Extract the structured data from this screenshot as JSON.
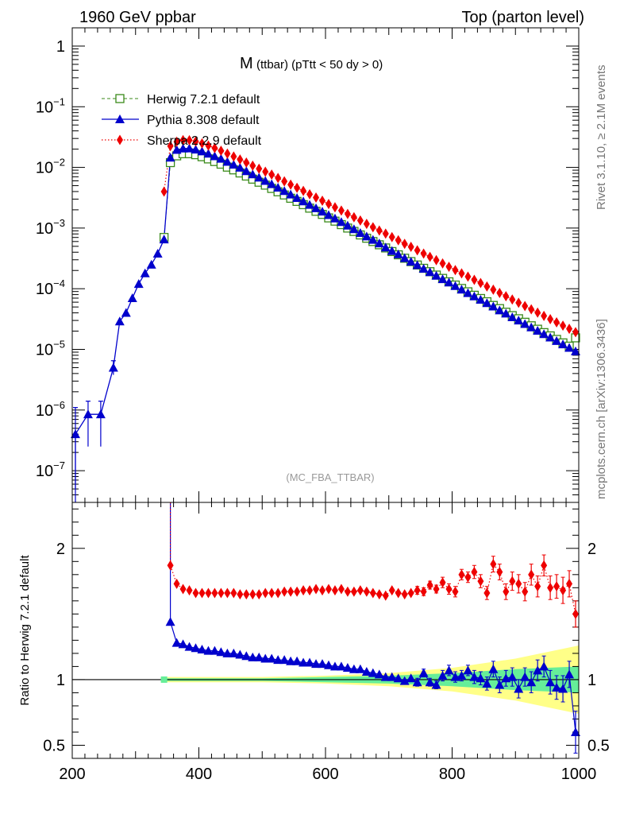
{
  "header": {
    "left": "1960 GeV ppbar",
    "right": "Top (parton level)"
  },
  "side_labels": {
    "rivet": "Rivet 3.1.10, ≥ 2.1M events",
    "mcplots": "mcplots.cern.ch [arXiv:1306.3436]"
  },
  "colors": {
    "herwig": "#3a8a1a",
    "pythia": "#0000cc",
    "sherpa": "#ee0000",
    "band_inner": "#66ee99",
    "band_outer": "#ffff88"
  },
  "chart_data": [
    {
      "type": "line",
      "title": "M (ttbar) (pTtt < 50 dy > 0)",
      "title_main": "M",
      "title_rest": "(ttbar) (pTtt < 50 dy > 0)",
      "watermark": "(MC_FBA_TTBAR)",
      "y_scale": "log",
      "xlim": [
        200,
        1000
      ],
      "ylim": [
        3e-08,
        2
      ],
      "y_ticks": [
        {
          "value": 1,
          "base": "1",
          "exp": ""
        },
        {
          "value": 0.1,
          "base": "10",
          "exp": "−1"
        },
        {
          "value": 0.01,
          "base": "10",
          "exp": "−2"
        },
        {
          "value": 0.001,
          "base": "10",
          "exp": "−3"
        },
        {
          "value": 0.0001,
          "base": "10",
          "exp": "−4"
        },
        {
          "value": 1e-05,
          "base": "10",
          "exp": "−5"
        },
        {
          "value": 1e-06,
          "base": "10",
          "exp": "−6"
        },
        {
          "value": 1e-07,
          "base": "10",
          "exp": "−7"
        }
      ],
      "legend_position": "top-left",
      "series": [
        {
          "name": "Herwig 7.2.1 default",
          "marker": "open-square",
          "style": "dashed",
          "x": [
            345,
            355,
            365,
            375,
            385,
            395,
            405,
            415,
            425,
            435,
            445,
            455,
            465,
            475,
            485,
            495,
            505,
            515,
            525,
            535,
            545,
            555,
            565,
            575,
            585,
            595,
            605,
            615,
            625,
            635,
            645,
            655,
            665,
            675,
            685,
            695,
            705,
            715,
            725,
            735,
            745,
            755,
            765,
            775,
            785,
            795,
            805,
            815,
            825,
            835,
            845,
            855,
            865,
            875,
            885,
            895,
            905,
            915,
            925,
            935,
            945,
            955,
            965,
            975,
            985,
            995
          ],
          "y": [
            0.0007,
            0.012,
            0.0155,
            0.0168,
            0.0168,
            0.0162,
            0.015,
            0.0138,
            0.0125,
            0.0113,
            0.0101,
            0.0091,
            0.0081,
            0.0072,
            0.0064,
            0.0057,
            0.0051,
            0.0045,
            0.00396,
            0.00351,
            0.0031,
            0.00275,
            0.00243,
            0.00213,
            0.00189,
            0.00168,
            0.00147,
            0.0013,
            0.00114,
            0.001,
            0.00088,
            0.00077,
            0.00068,
            0.0006,
            0.00053,
            0.00047,
            0.00041,
            0.000362,
            0.000318,
            0.00028,
            0.000246,
            0.000217,
            0.000191,
            0.000168,
            0.000148,
            0.00013,
            0.000115,
            0.000101,
            8.9e-05,
            7.8e-05,
            6.9e-05,
            6.1e-05,
            5.3e-05,
            4.7e-05,
            4.1e-05,
            3.6e-05,
            3.2e-05,
            2.8e-05,
            2.45e-05,
            2.15e-05,
            1.89e-05,
            1.67e-05,
            1.46e-05,
            1.28e-05,
            1.13e-05,
            1.55e-05
          ]
        },
        {
          "name": "Pythia 8.308 default",
          "marker": "filled-triangle",
          "style": "solid",
          "x": [
            205,
            225,
            245,
            265,
            275,
            285,
            295,
            305,
            315,
            325,
            335,
            345,
            355,
            365,
            375,
            385,
            395,
            405,
            415,
            425,
            435,
            445,
            455,
            465,
            475,
            485,
            495,
            505,
            515,
            525,
            535,
            545,
            555,
            565,
            575,
            585,
            595,
            605,
            615,
            625,
            635,
            645,
            655,
            665,
            675,
            685,
            695,
            705,
            715,
            725,
            735,
            745,
            755,
            765,
            775,
            785,
            795,
            805,
            815,
            825,
            835,
            845,
            855,
            865,
            875,
            885,
            895,
            905,
            915,
            925,
            935,
            945,
            955,
            965,
            975,
            985,
            995
          ],
          "y": [
            4e-07,
            8.5e-07,
            8.5e-07,
            5e-06,
            2.9e-05,
            4e-05,
            7e-05,
            0.00012,
            0.00018,
            0.00025,
            0.00038,
            0.00065,
            0.0145,
            0.0195,
            0.0205,
            0.0206,
            0.0197,
            0.0184,
            0.0169,
            0.0153,
            0.0139,
            0.0124,
            0.0111,
            0.0099,
            0.0087,
            0.0077,
            0.0068,
            0.006,
            0.0053,
            0.00465,
            0.00408,
            0.00358,
            0.00314,
            0.00276,
            0.00242,
            0.00213,
            0.00187,
            0.00164,
            0.00144,
            0.00126,
            0.0011,
            0.00096,
            0.00083,
            0.00073,
            0.00064,
            0.00056,
            0.00048,
            0.00042,
            0.00037,
            0.00032,
            0.00028,
            0.000245,
            0.000214,
            0.000188,
            0.000164,
            0.000144,
            0.000127,
            0.000111,
            9.7e-05,
            8.5e-05,
            7.5e-05,
            6.6e-05,
            5.8e-05,
            5.1e-05,
            4.4e-05,
            3.9e-05,
            3.4e-05,
            3e-05,
            2.63e-05,
            2.31e-05,
            2.03e-05,
            1.79e-05,
            1.57e-05,
            1.38e-05,
            1.21e-05,
            1.06e-05,
            9.3e-06
          ]
        },
        {
          "name": "Sherpa 2.2.9 default",
          "marker": "filled-diamond",
          "style": "dotted",
          "x": [
            345,
            355,
            365,
            375,
            385,
            395,
            405,
            415,
            425,
            435,
            445,
            455,
            465,
            475,
            485,
            495,
            505,
            515,
            525,
            535,
            545,
            555,
            565,
            575,
            585,
            595,
            605,
            615,
            625,
            635,
            645,
            655,
            665,
            675,
            685,
            695,
            705,
            715,
            725,
            735,
            745,
            755,
            765,
            775,
            785,
            795,
            805,
            815,
            825,
            835,
            845,
            855,
            865,
            875,
            885,
            895,
            905,
            915,
            925,
            935,
            945,
            955,
            965,
            975,
            985,
            995
          ],
          "y": [
            0.004,
            0.0225,
            0.0265,
            0.0282,
            0.0281,
            0.0268,
            0.0249,
            0.0229,
            0.0208,
            0.0188,
            0.0169,
            0.0151,
            0.0135,
            0.012,
            0.0107,
            0.0095,
            0.0085,
            0.0076,
            0.0067,
            0.0059,
            0.0052,
            0.0046,
            0.0041,
            0.0036,
            0.00318,
            0.00282,
            0.00249,
            0.0022,
            0.00194,
            0.00171,
            0.00151,
            0.00133,
            0.00117,
            0.00103,
            0.00091,
            0.00081,
            0.00071,
            0.00063,
            0.00055,
            0.00049,
            0.00043,
            0.00038,
            0.000335,
            0.000296,
            0.000261,
            0.00023,
            0.000203,
            0.000179,
            0.000158,
            0.00014,
            0.000124,
            0.000109,
            9.65e-05,
            8.52e-05,
            7.52e-05,
            6.64e-05,
            5.87e-05,
            5.18e-05,
            4.57e-05,
            4.04e-05,
            3.57e-05,
            3.15e-05,
            2.79e-05,
            2.46e-05,
            2.18e-05,
            1.92e-05
          ]
        }
      ]
    },
    {
      "type": "line",
      "ylabel": "Ratio to Herwig 7.2.1 default",
      "xlim": [
        200,
        1000
      ],
      "ylim": [
        0.4,
        2.35
      ],
      "x_ticks": [
        200,
        400,
        600,
        800,
        1000
      ],
      "y_ticks": [
        0.5,
        1,
        2
      ],
      "reference_line": 1,
      "series": [
        {
          "name": "Pythia 8.308 default",
          "x": [
            355,
            365,
            375,
            385,
            395,
            405,
            415,
            425,
            435,
            445,
            455,
            465,
            475,
            485,
            495,
            505,
            515,
            525,
            535,
            545,
            555,
            565,
            575,
            585,
            595,
            605,
            615,
            625,
            635,
            645,
            655,
            665,
            675,
            685,
            695,
            705,
            715,
            725,
            735,
            745,
            755,
            765,
            775,
            785,
            795,
            805,
            815,
            825,
            835,
            845,
            855,
            865,
            875,
            885,
            895,
            905,
            915,
            925,
            935,
            945,
            955,
            965,
            975,
            985,
            995
          ],
          "y": [
            1.44,
            1.28,
            1.27,
            1.25,
            1.24,
            1.23,
            1.22,
            1.22,
            1.21,
            1.2,
            1.2,
            1.19,
            1.18,
            1.17,
            1.17,
            1.16,
            1.16,
            1.15,
            1.15,
            1.14,
            1.14,
            1.13,
            1.13,
            1.12,
            1.12,
            1.11,
            1.1,
            1.1,
            1.09,
            1.08,
            1.08,
            1.06,
            1.05,
            1.04,
            1.02,
            1.02,
            1.01,
            0.99,
            1.01,
            0.98,
            1.05,
            0.98,
            0.96,
            1.03,
            1.07,
            1.02,
            1.03,
            1.07,
            1.02,
            1.01,
            0.97,
            1.08,
            0.96,
            1.01,
            1.02,
            0.93,
            1.02,
            0.98,
            1.07,
            1.1,
            0.98,
            0.94,
            0.93,
            1.04,
            0.6
          ],
          "err": [
            0.02,
            0.02,
            0.02,
            0.02,
            0.02,
            0.02,
            0.02,
            0.02,
            0.02,
            0.02,
            0.02,
            0.02,
            0.02,
            0.02,
            0.02,
            0.02,
            0.02,
            0.02,
            0.02,
            0.02,
            0.02,
            0.02,
            0.02,
            0.02,
            0.02,
            0.02,
            0.02,
            0.02,
            0.02,
            0.02,
            0.02,
            0.02,
            0.02,
            0.02,
            0.02,
            0.02,
            0.02,
            0.02,
            0.02,
            0.03,
            0.03,
            0.03,
            0.03,
            0.04,
            0.04,
            0.04,
            0.04,
            0.04,
            0.05,
            0.05,
            0.05,
            0.06,
            0.06,
            0.06,
            0.07,
            0.07,
            0.07,
            0.08,
            0.08,
            0.08,
            0.09,
            0.09,
            0.1,
            0.1,
            0.16
          ]
        },
        {
          "name": "Sherpa 2.2.9 default",
          "x": [
            355,
            365,
            375,
            385,
            395,
            405,
            415,
            425,
            435,
            445,
            455,
            465,
            475,
            485,
            495,
            505,
            515,
            525,
            535,
            545,
            555,
            565,
            575,
            585,
            595,
            605,
            615,
            625,
            635,
            645,
            655,
            665,
            675,
            685,
            695,
            705,
            715,
            725,
            735,
            745,
            755,
            765,
            775,
            785,
            795,
            805,
            815,
            825,
            835,
            845,
            855,
            865,
            875,
            885,
            895,
            905,
            915,
            925,
            935,
            945,
            955,
            965,
            975,
            985,
            995
          ],
          "y": [
            1.87,
            1.73,
            1.69,
            1.68,
            1.66,
            1.66,
            1.66,
            1.66,
            1.66,
            1.66,
            1.66,
            1.65,
            1.65,
            1.65,
            1.65,
            1.66,
            1.66,
            1.66,
            1.67,
            1.67,
            1.67,
            1.68,
            1.68,
            1.69,
            1.68,
            1.69,
            1.68,
            1.69,
            1.67,
            1.67,
            1.68,
            1.67,
            1.66,
            1.65,
            1.64,
            1.68,
            1.66,
            1.65,
            1.66,
            1.68,
            1.67,
            1.72,
            1.69,
            1.74,
            1.69,
            1.67,
            1.8,
            1.78,
            1.82,
            1.75,
            1.66,
            1.88,
            1.82,
            1.67,
            1.75,
            1.73,
            1.67,
            1.8,
            1.71,
            1.87,
            1.7,
            1.71,
            1.68,
            1.73,
            1.5
          ],
          "err": [
            0.02,
            0.02,
            0.02,
            0.02,
            0.02,
            0.02,
            0.02,
            0.02,
            0.02,
            0.02,
            0.02,
            0.02,
            0.02,
            0.02,
            0.02,
            0.02,
            0.02,
            0.02,
            0.02,
            0.02,
            0.02,
            0.02,
            0.02,
            0.02,
            0.02,
            0.02,
            0.02,
            0.02,
            0.02,
            0.02,
            0.02,
            0.02,
            0.02,
            0.02,
            0.02,
            0.02,
            0.02,
            0.02,
            0.02,
            0.03,
            0.03,
            0.03,
            0.03,
            0.04,
            0.04,
            0.04,
            0.04,
            0.04,
            0.05,
            0.05,
            0.05,
            0.06,
            0.06,
            0.06,
            0.07,
            0.07,
            0.07,
            0.08,
            0.08,
            0.08,
            0.09,
            0.09,
            0.1,
            0.1,
            0.1
          ]
        }
      ],
      "uncertainty_band": {
        "x": [
          340,
          400,
          500,
          600,
          700,
          800,
          900,
          1000
        ],
        "inner_halfwidth": [
          0.01,
          0.01,
          0.01,
          0.02,
          0.03,
          0.05,
          0.08,
          0.1
        ],
        "outer_halfwidth": [
          0.02,
          0.02,
          0.02,
          0.03,
          0.05,
          0.09,
          0.16,
          0.26
        ]
      }
    }
  ]
}
